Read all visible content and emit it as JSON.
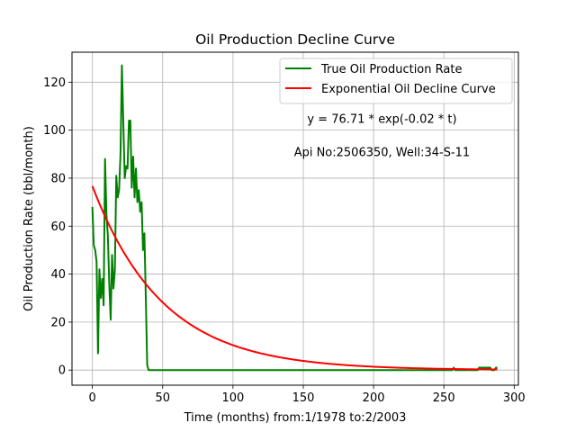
{
  "chart_data": {
    "type": "line",
    "title": "Oil Production Decline Curve",
    "xlabel": "Time (months) from:1/1978 to:2/2003",
    "ylabel": "Oil Production Rate (bbl/month)",
    "xlim": [
      -14.5,
      303
    ],
    "ylim": [
      -6.3,
      132.5
    ],
    "xticks": [
      0,
      50,
      100,
      150,
      200,
      250,
      300
    ],
    "yticks": [
      0,
      20,
      40,
      60,
      80,
      100,
      120
    ],
    "grid": true,
    "legend_position": "top-right",
    "annotations": [
      {
        "text": "y = 76.71 * exp(-0.02 * t)",
        "x": 206,
        "y": 105
      },
      {
        "text": "Api No:2506350, Well:34-S-11",
        "x": 206,
        "y": 91
      }
    ],
    "series": [
      {
        "name": "True Oil Production Rate",
        "color": "#008000",
        "x": [
          0,
          1,
          2,
          3,
          4,
          5,
          6,
          7,
          8,
          9,
          10,
          11,
          12,
          13,
          14,
          15,
          16,
          17,
          18,
          19,
          20,
          21,
          22,
          23,
          24,
          25,
          26,
          27,
          28,
          29,
          30,
          31,
          32,
          33,
          34,
          35,
          36,
          37,
          38,
          39,
          40,
          41,
          42,
          43,
          44,
          45,
          100,
          150,
          200,
          250,
          256,
          257,
          258,
          259,
          260,
          270,
          274,
          275,
          280,
          283,
          284,
          285,
          286,
          287,
          288
        ],
        "values": [
          68,
          52,
          50,
          45,
          7,
          42,
          30,
          38,
          27,
          88,
          65,
          56,
          36,
          21,
          48,
          34,
          42,
          81,
          72,
          75,
          90,
          127,
          103,
          80,
          85,
          84,
          104,
          104,
          76,
          89,
          72,
          84,
          70,
          75,
          66,
          70,
          50,
          57,
          30,
          2,
          0,
          0,
          0,
          0,
          0,
          0,
          0,
          0,
          0,
          0,
          0,
          1,
          0,
          0,
          0,
          0,
          0,
          1,
          1,
          1,
          0,
          0,
          0,
          1,
          1
        ]
      },
      {
        "name": "Exponential Oil Decline Curve",
        "color": "#ff0000",
        "function": "76.71 * exp(-0.02 * t)",
        "x_range": [
          0,
          288
        ]
      }
    ]
  }
}
